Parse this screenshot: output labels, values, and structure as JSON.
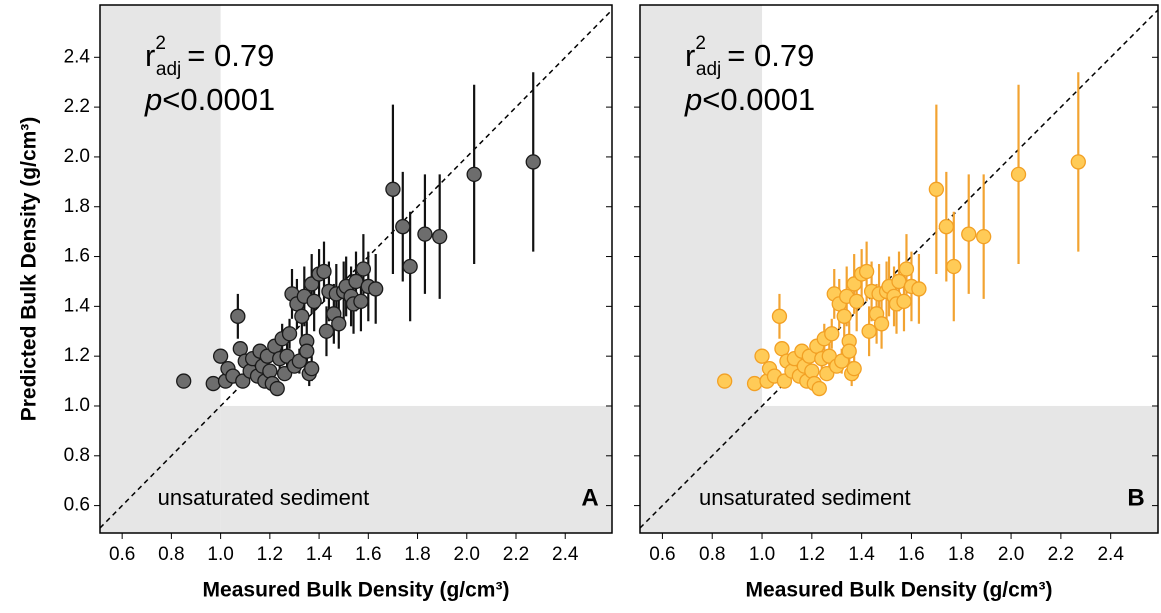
{
  "chart_data": [
    {
      "type": "scatter",
      "panel_label": "A",
      "annotation": "unsaturated sediment",
      "stat": {
        "base": "r",
        "sup": "2",
        "sub": "adj",
        "value": "= 0.79"
      },
      "p_symbol": "p",
      "p_value": "<0.0001",
      "xlabel": "Measured Bulk Density (g/cm³)",
      "ylabel": "Predicted Bulk Density (g/cm³)",
      "xlim": [
        0.51,
        2.59
      ],
      "ylim": [
        0.49,
        2.61
      ],
      "xticks": [
        0.6,
        0.8,
        {
          "value": 1.0,
          "label": "1.0"
        },
        1.2,
        1.4,
        1.6,
        1.8,
        {
          "value": 2.0,
          "label": "2.0"
        },
        2.2,
        2.4
      ],
      "yticks": [
        0.6,
        0.8,
        {
          "value": 1.0,
          "label": "1.0"
        },
        1.2,
        1.4,
        1.6,
        1.8,
        {
          "value": 2.0,
          "label": "2.0"
        },
        2.2,
        2.4
      ],
      "show_ytick_labels": true,
      "shaded_threshold": 1.0,
      "diagonal": true,
      "series": [
        {
          "color": "#6d6d6d",
          "edge_color": "#1a1a1a",
          "error_color": "#111111",
          "x": [
            0.85,
            0.97,
            1.0,
            1.02,
            1.03,
            1.05,
            1.07,
            1.08,
            1.09,
            1.1,
            1.12,
            1.13,
            1.15,
            1.16,
            1.17,
            1.18,
            1.19,
            1.2,
            1.21,
            1.22,
            1.23,
            1.24,
            1.25,
            1.26,
            1.27,
            1.28,
            1.29,
            1.3,
            1.31,
            1.32,
            1.33,
            1.34,
            1.35,
            1.35,
            1.36,
            1.37,
            1.37,
            1.38,
            1.4,
            1.42,
            1.43,
            1.44,
            1.46,
            1.47,
            1.48,
            1.5,
            1.51,
            1.53,
            1.54,
            1.55,
            1.57,
            1.58,
            1.6,
            1.63,
            1.7,
            1.74,
            1.77,
            1.83,
            1.89,
            2.03,
            2.27
          ],
          "values": [
            1.1,
            1.09,
            1.2,
            1.1,
            1.15,
            1.12,
            1.36,
            1.23,
            1.1,
            1.18,
            1.14,
            1.19,
            1.12,
            1.22,
            1.16,
            1.1,
            1.2,
            1.14,
            1.09,
            1.24,
            1.07,
            1.19,
            1.27,
            1.13,
            1.2,
            1.29,
            1.45,
            1.16,
            1.41,
            1.18,
            1.36,
            1.44,
            1.26,
            1.22,
            1.13,
            1.15,
            1.49,
            1.42,
            1.53,
            1.54,
            1.3,
            1.46,
            1.37,
            1.45,
            1.33,
            1.46,
            1.48,
            1.44,
            1.41,
            1.5,
            1.42,
            1.55,
            1.48,
            1.47,
            1.87,
            1.72,
            1.56,
            1.69,
            1.68,
            1.93,
            1.98
          ],
          "errors": [
            0,
            0,
            0,
            0,
            0,
            0,
            0.09,
            0,
            0,
            0.04,
            0,
            0,
            0,
            0,
            0,
            0,
            0,
            0,
            0,
            0,
            0,
            0.05,
            0.06,
            0,
            0.05,
            0.06,
            0.1,
            0,
            0.1,
            0.05,
            0.1,
            0.12,
            0.08,
            0.06,
            0.05,
            0.05,
            0.12,
            0.12,
            0.1,
            0.12,
            0.1,
            0.12,
            0.12,
            0.12,
            0.1,
            0.12,
            0.12,
            0.12,
            0.12,
            0.12,
            0.12,
            0.14,
            0.14,
            0.14,
            0.34,
            0.22,
            0.22,
            0.24,
            0.25,
            0.36,
            0.36
          ]
        }
      ]
    },
    {
      "type": "scatter",
      "panel_label": "B",
      "annotation": "unsaturated sediment",
      "stat": {
        "base": "r",
        "sup": "2",
        "sub": "adj",
        "value": "= 0.79"
      },
      "p_symbol": "p",
      "p_value": "<0.0001",
      "xlabel": "Measured Bulk Density (g/cm³)",
      "xlim": [
        0.51,
        2.59
      ],
      "ylim": [
        0.49,
        2.61
      ],
      "xticks": [
        0.6,
        0.8,
        {
          "value": 1.0,
          "label": "1.0"
        },
        1.2,
        1.4,
        1.6,
        1.8,
        {
          "value": 2.0,
          "label": "2.0"
        },
        2.2,
        2.4
      ],
      "yticks": [
        0.6,
        0.8,
        1.0,
        1.2,
        1.4,
        1.6,
        1.8,
        2.0,
        2.2,
        2.4
      ],
      "show_ytick_labels": false,
      "shaded_threshold": 1.0,
      "diagonal": true,
      "series": [
        {
          "color": "#ffcb57",
          "edge_color": "#f2a024",
          "error_color": "#f2a331",
          "x": [
            0.85,
            0.97,
            1.0,
            1.02,
            1.03,
            1.05,
            1.07,
            1.08,
            1.09,
            1.1,
            1.12,
            1.13,
            1.15,
            1.16,
            1.17,
            1.18,
            1.19,
            1.2,
            1.21,
            1.22,
            1.23,
            1.24,
            1.25,
            1.26,
            1.27,
            1.28,
            1.29,
            1.3,
            1.31,
            1.32,
            1.33,
            1.34,
            1.35,
            1.35,
            1.36,
            1.37,
            1.37,
            1.38,
            1.4,
            1.42,
            1.43,
            1.44,
            1.46,
            1.47,
            1.48,
            1.5,
            1.51,
            1.53,
            1.54,
            1.55,
            1.57,
            1.58,
            1.6,
            1.63,
            1.7,
            1.74,
            1.77,
            1.83,
            1.89,
            2.03,
            2.27
          ],
          "values": [
            1.1,
            1.09,
            1.2,
            1.1,
            1.15,
            1.12,
            1.36,
            1.23,
            1.1,
            1.18,
            1.14,
            1.19,
            1.12,
            1.22,
            1.16,
            1.1,
            1.2,
            1.14,
            1.09,
            1.24,
            1.07,
            1.19,
            1.27,
            1.13,
            1.2,
            1.29,
            1.45,
            1.16,
            1.41,
            1.18,
            1.36,
            1.44,
            1.26,
            1.22,
            1.13,
            1.15,
            1.49,
            1.42,
            1.53,
            1.54,
            1.3,
            1.46,
            1.37,
            1.45,
            1.33,
            1.46,
            1.48,
            1.44,
            1.41,
            1.5,
            1.42,
            1.55,
            1.48,
            1.47,
            1.87,
            1.72,
            1.56,
            1.69,
            1.68,
            1.93,
            1.98
          ],
          "errors": [
            0,
            0,
            0,
            0,
            0,
            0,
            0.09,
            0,
            0,
            0.04,
            0,
            0,
            0,
            0,
            0,
            0,
            0,
            0,
            0,
            0,
            0,
            0.05,
            0.06,
            0,
            0.05,
            0.06,
            0.1,
            0,
            0.1,
            0.05,
            0.1,
            0.12,
            0.08,
            0.06,
            0.05,
            0.05,
            0.12,
            0.12,
            0.1,
            0.12,
            0.1,
            0.12,
            0.12,
            0.12,
            0.1,
            0.12,
            0.12,
            0.12,
            0.12,
            0.12,
            0.12,
            0.14,
            0.14,
            0.14,
            0.34,
            0.22,
            0.22,
            0.24,
            0.25,
            0.36,
            0.36
          ]
        }
      ]
    }
  ]
}
